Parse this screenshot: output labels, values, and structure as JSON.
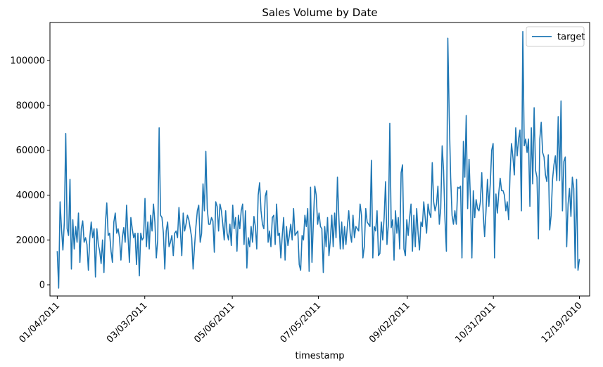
{
  "chart_data": {
    "type": "line",
    "title": "Sales Volume by Date",
    "xlabel": "timestamp",
    "ylabel": "",
    "ylim": [
      -5000,
      117000
    ],
    "yticks": [
      0,
      20000,
      40000,
      60000,
      80000,
      100000
    ],
    "yticklabels": [
      "0",
      "20000",
      "40000",
      "60000",
      "80000",
      "100000"
    ],
    "xlim": [
      -5,
      365
    ],
    "xticks": [
      0,
      60,
      120,
      179,
      240,
      299,
      358
    ],
    "xticklabels": [
      "01/04/2011",
      "03/03/2011",
      "05/06/2011",
      "07/05/2011",
      "09/02/2011",
      "10/31/2011",
      "12/19/2010"
    ],
    "legend": {
      "position": "top-right",
      "entries": [
        "target"
      ]
    },
    "grid": false,
    "series": [
      {
        "name": "target",
        "color": "#1f77b4",
        "values": [
          15000,
          -1500,
          37000,
          25000,
          15500,
          28000,
          67500,
          25000,
          22000,
          47000,
          7000,
          29000,
          16000,
          26000,
          19000,
          32000,
          10000,
          25000,
          28500,
          19000,
          21000,
          18000,
          6500,
          21000,
          28000,
          21000,
          25000,
          3500,
          25000,
          18000,
          15000,
          9500,
          20000,
          5500,
          27000,
          36500,
          22000,
          23000,
          15000,
          10000,
          28000,
          32000,
          23000,
          25000,
          21000,
          11000,
          21000,
          25500,
          19000,
          35500,
          21500,
          10000,
          30000,
          25000,
          21000,
          23000,
          9000,
          23000,
          4000,
          23000,
          20000,
          21000,
          38500,
          17000,
          28000,
          16000,
          31000,
          24000,
          36000,
          28000,
          12000,
          20000,
          70000,
          31000,
          30000,
          23000,
          7000,
          24000,
          28000,
          17000,
          19000,
          22000,
          13000,
          23000,
          24000,
          21000,
          34500,
          24000,
          13000,
          32000,
          24000,
          27000,
          31000,
          29000,
          25000,
          21000,
          7000,
          17000,
          26000,
          33000,
          35500,
          19000,
          23000,
          45000,
          33000,
          59500,
          34000,
          27000,
          27000,
          30000,
          28500,
          14500,
          37000,
          35000,
          24000,
          36000,
          33000,
          27000,
          20000,
          33000,
          23000,
          20000,
          27000,
          17500,
          35500,
          25000,
          30000,
          15000,
          31000,
          25000,
          33000,
          36000,
          18000,
          33000,
          7500,
          21000,
          17000,
          26000,
          19000,
          30500,
          26000,
          16000,
          40000,
          45500,
          33000,
          27000,
          25000,
          39500,
          42000,
          19000,
          24000,
          17000,
          30000,
          31000,
          18000,
          36000,
          22000,
          23000,
          12000,
          22000,
          30000,
          11000,
          26000,
          17500,
          22000,
          27000,
          20000,
          34000,
          22000,
          23000,
          24000,
          9000,
          6500,
          22000,
          20000,
          31000,
          26000,
          34000,
          6000,
          43500,
          10000,
          28000,
          44000,
          40000,
          27000,
          32000,
          26000,
          25000,
          5500,
          26000,
          17000,
          30000,
          13000,
          20000,
          31000,
          17000,
          32000,
          21000,
          48000,
          30000,
          16000,
          28000,
          16000,
          26000,
          18000,
          26000,
          33000,
          23000,
          19000,
          31000,
          21000,
          26000,
          25000,
          24000,
          36000,
          31000,
          12000,
          17000,
          34000,
          28000,
          27000,
          26000,
          55500,
          12000,
          26000,
          24000,
          33000,
          13000,
          14000,
          28000,
          20000,
          30000,
          46000,
          18000,
          27000,
          72000,
          25500,
          29000,
          11000,
          33000,
          23000,
          30000,
          16000,
          50000,
          53500,
          16000,
          13000,
          29000,
          22000,
          30000,
          36000,
          15000,
          31000,
          17000,
          34000,
          23000,
          15500,
          28000,
          26000,
          37000,
          30000,
          23000,
          36000,
          32000,
          30000,
          54500,
          37000,
          33000,
          36000,
          44000,
          27000,
          34000,
          62000,
          51000,
          29000,
          15000,
          110000,
          75000,
          48000,
          31000,
          27000,
          33000,
          27000,
          43500,
          43000,
          44000,
          12000,
          64000,
          48000,
          75500,
          34000,
          56000,
          38000,
          12000,
          42000,
          30000,
          38000,
          34000,
          33000,
          37000,
          50000,
          32000,
          21500,
          33000,
          47000,
          35000,
          45000,
          60000,
          63000,
          12000,
          40500,
          32000,
          41000,
          47500,
          42000,
          42000,
          40000,
          33000,
          37000,
          29000,
          50000,
          63000,
          57000,
          49000,
          70000,
          57500,
          65000,
          69000,
          33000,
          113000,
          62000,
          65000,
          59000,
          65000,
          35000,
          70000,
          45000,
          79000,
          51000,
          48000,
          20500,
          65000,
          72500,
          59000,
          57000,
          49000,
          46000,
          58000,
          24500,
          31000,
          47000,
          53500,
          57500,
          46500,
          75000,
          46500,
          82000,
          33000,
          55000,
          57000,
          17000,
          36000,
          43000,
          30500,
          48000,
          43000,
          7500,
          47000,
          6500,
          11500
        ]
      }
    ]
  }
}
